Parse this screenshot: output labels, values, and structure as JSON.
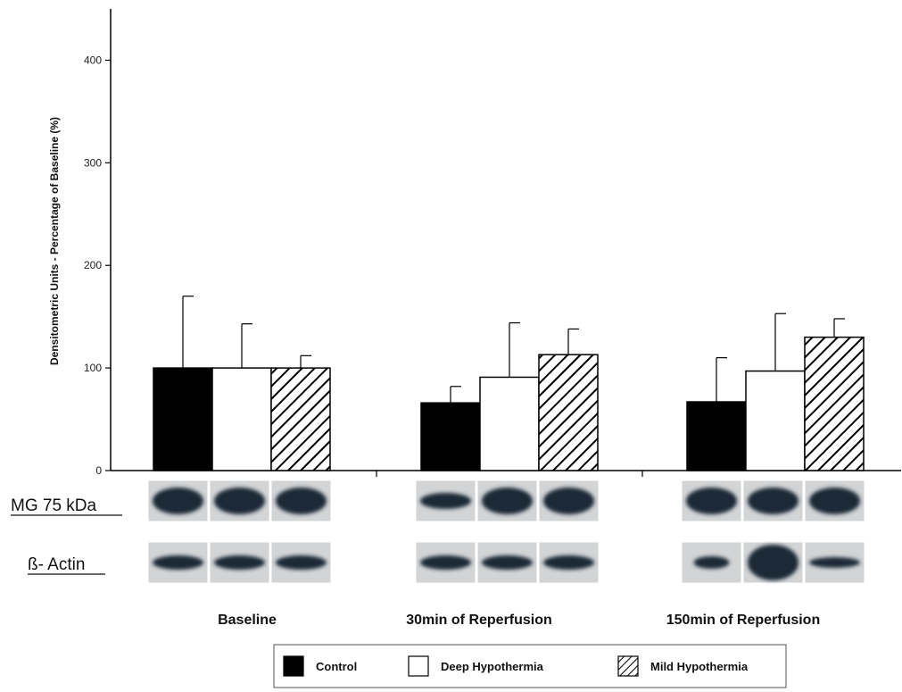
{
  "chart_data": {
    "type": "bar",
    "ylabel": "Densitometric Units - Percentage of Baseline (%)",
    "ylim": [
      0,
      450
    ],
    "yticks": [
      "0",
      "100",
      "200",
      "300",
      "400"
    ],
    "categories": [
      "Baseline",
      "30min of Reperfusion",
      "150min of Reperfusion"
    ],
    "series": [
      {
        "name": "Control",
        "values": [
          100,
          66,
          67
        ],
        "errors": [
          70,
          16,
          43
        ],
        "fill": "#000000"
      },
      {
        "name": "Deep Hypothermia",
        "values": [
          100,
          91,
          97
        ],
        "errors": [
          43,
          53,
          56
        ],
        "fill": "#ffffff"
      },
      {
        "name": "Mild Hypothermia",
        "values": [
          100,
          113,
          130
        ],
        "errors": [
          12,
          25,
          18
        ],
        "fill": "hatch"
      }
    ],
    "grid": false,
    "legend_position": "bottom"
  },
  "blots": [
    {
      "label": "MG 75 kDa"
    },
    {
      "label": "ß- Actin"
    }
  ],
  "colors": {
    "bar_dark": "#000000",
    "blot_band": "#1c2a38",
    "blot_bg": "#d2d4d6"
  }
}
